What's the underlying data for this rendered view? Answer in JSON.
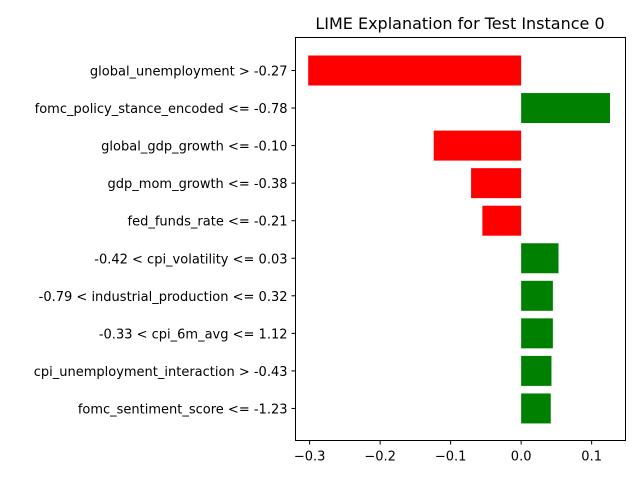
{
  "chart_data": {
    "type": "bar",
    "orientation": "horizontal",
    "title": "LIME Explanation for Test Instance 0",
    "xlabel": "",
    "ylabel": "",
    "xlim": [
      -0.32,
      0.148
    ],
    "xticks": [
      -0.3,
      -0.2,
      -0.1,
      0.0,
      0.1
    ],
    "xtick_labels": [
      "−0.3",
      "−0.2",
      "−0.1",
      "0.0",
      "0.1"
    ],
    "grid": false,
    "positive_color": "#008000",
    "negative_color": "#ff0000",
    "categories": [
      "global_unemployment > -0.27",
      "fomc_policy_stance_encoded <= -0.78",
      "global_gdp_growth <= -0.10",
      "gdp_mom_growth <= -0.38",
      "fed_funds_rate <= -0.21",
      "-0.42 < cpi_volatility <= 0.03",
      "-0.79 < industrial_production <= 0.32",
      "-0.33 < cpi_6m_avg <= 1.12",
      "cpi_unemployment_interaction > -0.43",
      "fomc_sentiment_score <= -1.23"
    ],
    "values": [
      -0.302,
      0.126,
      -0.124,
      -0.071,
      -0.055,
      0.053,
      0.045,
      0.045,
      0.043,
      0.042
    ]
  }
}
